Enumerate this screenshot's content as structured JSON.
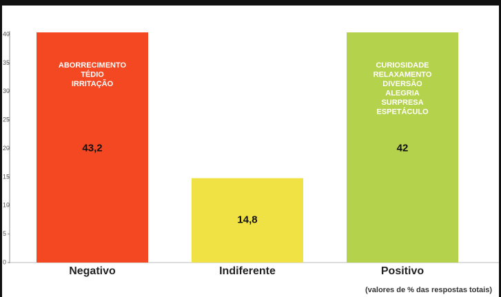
{
  "chart_data": {
    "type": "bar",
    "categories": [
      "Negativo",
      "Indiferente",
      "Positivo"
    ],
    "values": [
      43.2,
      14.8,
      42
    ],
    "value_labels": [
      "43,2",
      "14,8",
      "42"
    ],
    "colors": [
      "#f44822",
      "#f0e244",
      "#b5d24c"
    ],
    "bar_texts": [
      [
        "ABORRECIMENTO",
        "TÉDIO",
        "IRRITAÇÃO"
      ],
      [],
      [
        "CURIOSIDADE",
        "RELAXAMENTO",
        "DIVERSÃO",
        "ALEGRIA",
        "SURPRESA",
        "ESPETÁCULO"
      ]
    ],
    "ylim": [
      0,
      40
    ],
    "yticks": [
      0,
      5,
      10,
      15,
      20,
      25,
      30,
      35,
      40
    ],
    "note": "(valores de % das respostas totais)"
  }
}
